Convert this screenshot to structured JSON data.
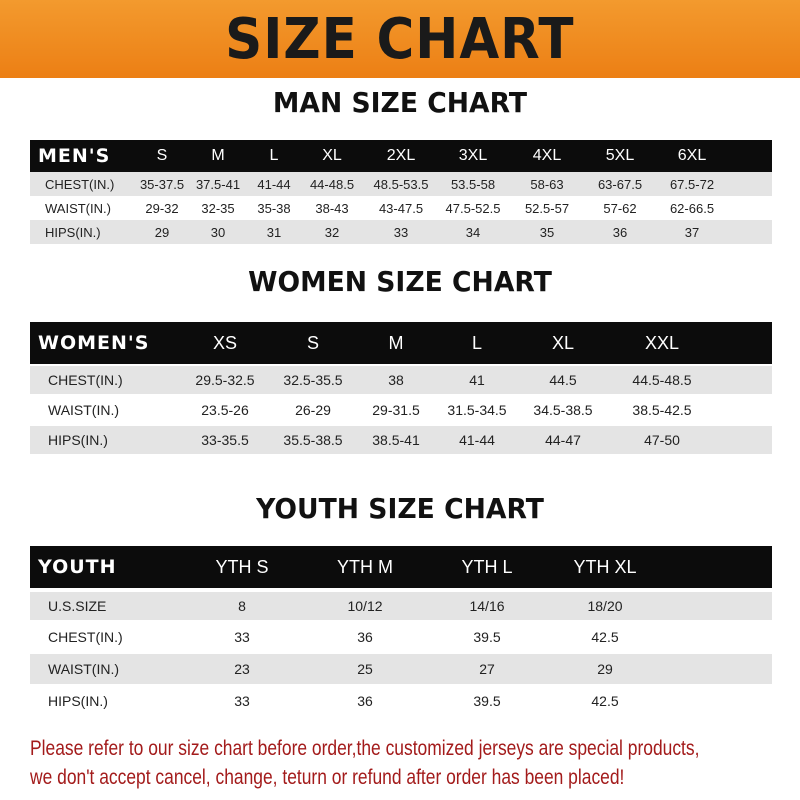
{
  "banner": {
    "title": "SIZE CHART",
    "color": "#ee8720"
  },
  "men": {
    "title": "MAN SIZE CHART",
    "header": [
      "MEN'S",
      "S",
      "M",
      "L",
      "XL",
      "2XL",
      "3XL",
      "4XL",
      "5XL",
      "6XL"
    ],
    "rows": [
      [
        "CHEST(IN.)",
        "35-37.5",
        "37.5-41",
        "41-44",
        "44-48.5",
        "48.5-53.5",
        "53.5-58",
        "58-63",
        "63-67.5",
        "67.5-72"
      ],
      [
        "WAIST(IN.)",
        "29-32",
        "32-35",
        "35-38",
        "38-43",
        "43-47.5",
        "47.5-52.5",
        "52.5-57",
        "57-62",
        "62-66.5"
      ],
      [
        "HIPS(IN.)",
        "29",
        "30",
        "31",
        "32",
        "33",
        "34",
        "35",
        "36",
        "37"
      ]
    ]
  },
  "women": {
    "title": "WOMEN SIZE CHART",
    "header": [
      "WOMEN'S",
      "XS",
      "S",
      "M",
      "L",
      "XL",
      "XXL"
    ],
    "rows": [
      [
        "CHEST(IN.)",
        "29.5-32.5",
        "32.5-35.5",
        "38",
        "41",
        "44.5",
        "44.5-48.5"
      ],
      [
        "WAIST(IN.)",
        "23.5-26",
        "26-29",
        "29-31.5",
        "31.5-34.5",
        "34.5-38.5",
        "38.5-42.5"
      ],
      [
        "HIPS(IN.)",
        "33-35.5",
        "35.5-38.5",
        "38.5-41",
        "41-44",
        "44-47",
        "47-50"
      ]
    ]
  },
  "youth": {
    "title": "YOUTH SIZE CHART",
    "header": [
      "YOUTH",
      "YTH S",
      "YTH M",
      "YTH L",
      "YTH XL"
    ],
    "rows": [
      [
        "U.S.SIZE",
        "8",
        "10/12",
        "14/16",
        "18/20"
      ],
      [
        "CHEST(IN.)",
        "33",
        "36",
        "39.5",
        "42.5"
      ],
      [
        "WAIST(IN.)",
        "23",
        "25",
        "27",
        "29"
      ],
      [
        "HIPS(IN.)",
        "33",
        "36",
        "39.5",
        "42.5"
      ]
    ]
  },
  "footer": {
    "line1": "Please refer to our size chart before order,the customized jerseys are special products,",
    "line2": "we don't accept cancel, change, teturn or refund after order has been placed!",
    "color": "#a31b1b"
  }
}
